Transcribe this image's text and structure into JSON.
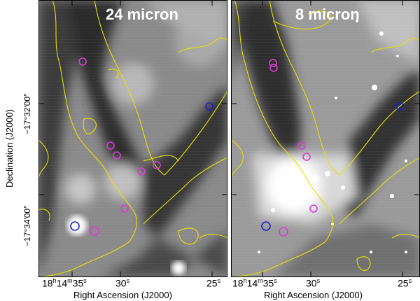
{
  "panels": [
    {
      "id": "24",
      "title": "24 micron"
    },
    {
      "id": "8",
      "title": "8 micron"
    }
  ],
  "axes": {
    "ylabel": "Declination (J2000)",
    "xlabel": "Right Ascension (J2000)",
    "yticks": [
      "−17°32′00″",
      "−17°34′00″"
    ],
    "xticks_left": [
      "18h14m35s",
      "30s",
      "25s"
    ],
    "xticks_right": [
      "18h14m35s",
      "30s",
      "25s"
    ]
  },
  "colors": {
    "contour": "#e8e000",
    "magenta_marker": "#d83cd8",
    "blue_marker": "#1a22c8"
  }
}
